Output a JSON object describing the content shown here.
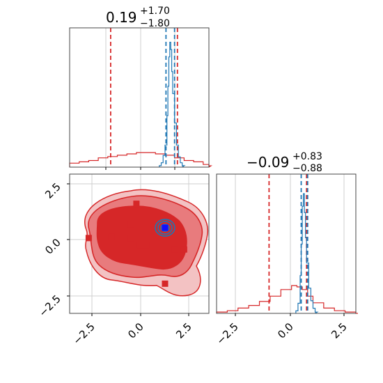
{
  "chart_data": {
    "type": "corner",
    "panels": {
      "hist_x": {
        "title": {
          "value": "0.19",
          "upper": "+1.70",
          "lower": "−1.80"
        },
        "xlim": [
          -3.8,
          3.5
        ],
        "series": [
          {
            "name": "",
            "color": "#d62728",
            "quantiles": [
              -1.65,
              1.85
            ],
            "x": [
              -3.8,
              -3.3,
              -2.8,
              -2.3,
              -1.8,
              -1.3,
              -0.8,
              -0.3,
              0.2,
              0.7,
              1.2,
              1.7,
              2.2,
              2.7,
              3.2,
              3.5
            ],
            "counts": [
              0.03,
              0.04,
              0.05,
              0.07,
              0.08,
              0.09,
              0.1,
              0.11,
              0.11,
              0.1,
              0.09,
              0.07,
              0.05,
              0.04,
              0.02,
              0.01
            ]
          },
          {
            "name": "",
            "color": "#1f77b4",
            "quantiles": [
              1.25,
              1.7
            ],
            "x": [
              0.9,
              1.0,
              1.1,
              1.2,
              1.3,
              1.35,
              1.4,
              1.45,
              1.5,
              1.55,
              1.6,
              1.7,
              1.8,
              1.9,
              2.0,
              2.1
            ],
            "counts": [
              0.01,
              0.03,
              0.08,
              0.15,
              0.35,
              0.55,
              0.75,
              0.85,
              0.8,
              0.65,
              0.5,
              0.3,
              0.15,
              0.07,
              0.03,
              0.01
            ]
          }
        ]
      },
      "hist_y": {
        "title": {
          "value": "−0.09",
          "upper": "+0.83",
          "lower": "−0.88"
        },
        "xlim": [
          -3.5,
          3.0
        ],
        "xticks": [
          "−2.5",
          "0.0",
          "2.5"
        ],
        "series": [
          {
            "name": "",
            "color": "#d62728",
            "quantiles": [
              -1.05,
              0.7
            ],
            "x": [
              -3.5,
              -3.0,
              -2.5,
              -2.0,
              -1.5,
              -1.0,
              -0.5,
              0.0,
              0.25,
              0.5,
              0.75,
              1.0,
              1.5,
              2.0,
              2.5,
              3.0
            ],
            "counts": [
              0.01,
              0.02,
              0.04,
              0.06,
              0.09,
              0.13,
              0.18,
              0.21,
              0.2,
              0.18,
              0.13,
              0.08,
              0.04,
              0.02,
              0.01,
              0.0
            ]
          },
          {
            "name": "",
            "color": "#1f77b4",
            "quantiles": [
              0.45,
              0.75
            ],
            "x": [
              0.2,
              0.3,
              0.4,
              0.45,
              0.5,
              0.55,
              0.6,
              0.65,
              0.7,
              0.8,
              0.9,
              1.0,
              1.1
            ],
            "counts": [
              0.02,
              0.08,
              0.3,
              0.55,
              0.85,
              0.95,
              0.8,
              0.6,
              0.4,
              0.2,
              0.1,
              0.04,
              0.01
            ]
          }
        ]
      },
      "scatter_2d": {
        "xlim": [
          -3.8,
          3.5
        ],
        "ylim": [
          -3.2,
          2.9
        ],
        "xticks": [
          "−2.5",
          "0.0",
          "2.5"
        ],
        "yticks": [
          "−2.5",
          "0.0",
          "2.5"
        ],
        "red_points": [
          [
            -0.3,
            1.6
          ],
          [
            -0.6,
            0.7
          ],
          [
            -2.8,
            0.1
          ],
          [
            -1.6,
            0.15
          ],
          [
            -0.6,
            0.1
          ],
          [
            -0.1,
            -0.2
          ],
          [
            0.2,
            -0.2
          ],
          [
            1.7,
            -0.4
          ],
          [
            2.2,
            -0.4
          ],
          [
            1.2,
            -1.9
          ]
        ],
        "blue_point": [
          1.2,
          0.55
        ],
        "red_color": "#d62728",
        "blue_color": "#1f77b4",
        "marker_blue": "#1010ff"
      }
    }
  }
}
